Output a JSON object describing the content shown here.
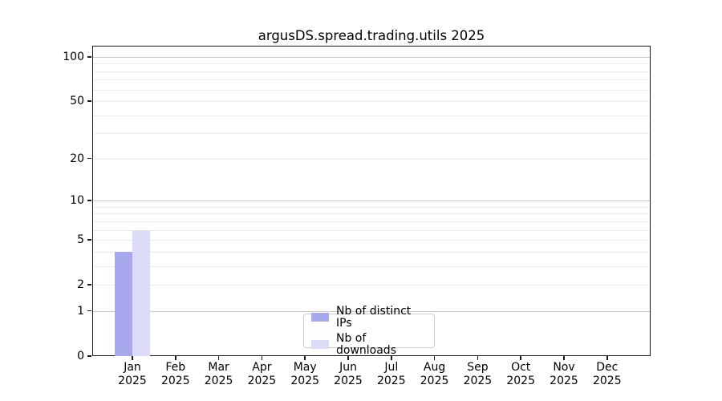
{
  "chart_data": {
    "type": "bar",
    "title": "argusDS.spread.trading.utils 2025",
    "xlabel": "",
    "ylabel": "",
    "categories": [
      "Jan 2025",
      "Feb 2025",
      "Mar 2025",
      "Apr 2025",
      "May 2025",
      "Jun 2025",
      "Jul 2025",
      "Aug 2025",
      "Sep 2025",
      "Oct 2025",
      "Nov 2025",
      "Dec 2025"
    ],
    "series": [
      {
        "name": "Nb of distinct IPs",
        "color": "#a8a8ee",
        "values": [
          4,
          0,
          0,
          0,
          0,
          0,
          0,
          0,
          0,
          0,
          0,
          0
        ]
      },
      {
        "name": "Nb of downloads",
        "color": "#dcdcf8",
        "values": [
          6,
          0,
          0,
          0,
          0,
          0,
          0,
          0,
          0,
          0,
          0,
          0
        ]
      }
    ],
    "y_scale": "log10(1+v)",
    "ylim": [
      0,
      119
    ],
    "y_ticks": [
      100,
      50,
      20,
      10,
      5,
      2,
      1,
      0
    ],
    "major_gridlines": [
      100,
      10,
      1
    ],
    "minor_gridlines": [
      90,
      80,
      70,
      60,
      50,
      40,
      30,
      20,
      9,
      8,
      7,
      6,
      5,
      4,
      3,
      2
    ],
    "grid": "both",
    "legend_position": "lower center"
  },
  "colors": {
    "axis": "#1a1a1a",
    "major_grid": "#c9c9c9",
    "minor_grid": "#ebebeb",
    "legend_border": "#cccccc"
  }
}
